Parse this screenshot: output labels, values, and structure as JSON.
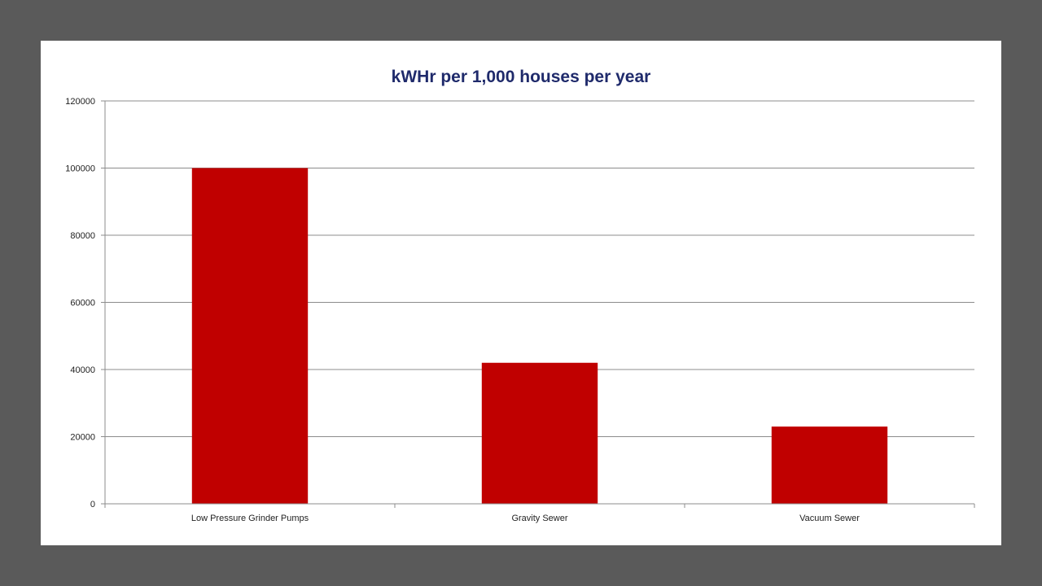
{
  "chart_data": {
    "type": "bar",
    "title": "kWHr per 1,000 houses per year",
    "categories": [
      "Low Pressure Grinder Pumps",
      "Gravity Sewer",
      "Vacuum Sewer"
    ],
    "values": [
      100000,
      42000,
      23000
    ],
    "ylim": [
      0,
      120000
    ],
    "yticks": [
      "0",
      "20000",
      "40000",
      "60000",
      "80000",
      "100000",
      "120000"
    ],
    "grid": true,
    "legend": "none",
    "bar_color": "#c00000",
    "title_color": "#1f2a6b"
  }
}
